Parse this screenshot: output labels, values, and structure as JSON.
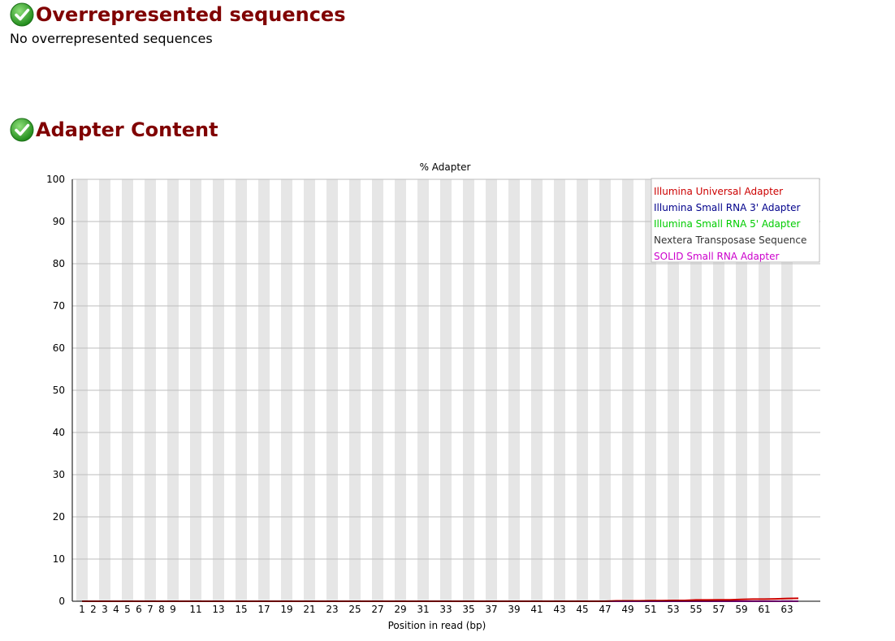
{
  "sections": [
    {
      "title": "Overrepresented sequences",
      "status_icon": "pass-check-icon",
      "body": "No overrepresented sequences"
    },
    {
      "title": "Adapter Content",
      "status_icon": "pass-check-icon"
    }
  ],
  "colors": {
    "heading": "#800000",
    "stripe": "#e6e6e6",
    "grid": "#bdbdbd"
  },
  "chart_data": {
    "type": "line",
    "title": "% Adapter",
    "xlabel": "Position in read (bp)",
    "ylabel": "",
    "ylim": [
      0,
      100
    ],
    "yticks": [
      0,
      10,
      20,
      30,
      40,
      50,
      60,
      70,
      80,
      90,
      100
    ],
    "x": [
      1,
      2,
      3,
      4,
      5,
      6,
      7,
      8,
      9,
      10,
      11,
      12,
      13,
      14,
      15,
      16,
      17,
      18,
      19,
      20,
      21,
      22,
      23,
      24,
      25,
      26,
      27,
      28,
      29,
      30,
      31,
      32,
      33,
      34,
      35,
      36,
      37,
      38,
      39,
      40,
      41,
      42,
      43,
      44,
      45,
      46,
      47,
      48,
      49,
      50,
      51,
      52,
      53,
      54,
      55,
      56,
      57,
      58,
      59,
      60,
      61,
      62,
      63,
      64
    ],
    "xtick_labels": [
      "1",
      "2",
      "3",
      "4",
      "5",
      "6",
      "7",
      "8",
      "9",
      "11",
      "13",
      "15",
      "17",
      "19",
      "21",
      "23",
      "25",
      "27",
      "29",
      "31",
      "33",
      "35",
      "37",
      "39",
      "41",
      "43",
      "45",
      "47",
      "49",
      "51",
      "53",
      "55",
      "57",
      "59",
      "61",
      "63"
    ],
    "xtick_positions": [
      1,
      2,
      3,
      4,
      5,
      6,
      7,
      8,
      9,
      11,
      13,
      15,
      17,
      19,
      21,
      23,
      25,
      27,
      29,
      31,
      33,
      35,
      37,
      39,
      41,
      43,
      45,
      47,
      49,
      51,
      53,
      55,
      57,
      59,
      61,
      63
    ],
    "legend_position": "top-right",
    "grid": true,
    "series": [
      {
        "name": "Illumina Universal Adapter",
        "color": "#cc0000",
        "values": [
          0,
          0,
          0,
          0,
          0,
          0,
          0,
          0,
          0,
          0,
          0,
          0,
          0,
          0,
          0,
          0,
          0,
          0,
          0,
          0,
          0,
          0,
          0,
          0,
          0,
          0,
          0,
          0,
          0,
          0,
          0,
          0,
          0,
          0,
          0,
          0,
          0,
          0,
          0,
          0,
          0,
          0,
          0,
          0,
          0,
          0,
          0,
          0.1,
          0.1,
          0.1,
          0.15,
          0.15,
          0.2,
          0.2,
          0.3,
          0.3,
          0.35,
          0.35,
          0.45,
          0.5,
          0.5,
          0.55,
          0.65,
          0.7
        ]
      },
      {
        "name": "Illumina Small RNA 3' Adapter",
        "color": "#00008b",
        "values": [
          0,
          0,
          0,
          0,
          0,
          0,
          0,
          0,
          0,
          0,
          0,
          0,
          0,
          0,
          0,
          0,
          0,
          0,
          0,
          0,
          0,
          0,
          0,
          0,
          0,
          0,
          0,
          0,
          0,
          0,
          0,
          0,
          0,
          0,
          0,
          0,
          0,
          0,
          0,
          0,
          0,
          0,
          0,
          0,
          0,
          0,
          0,
          0,
          0,
          0,
          0,
          0,
          0,
          0,
          0,
          0,
          0,
          0,
          0,
          0,
          0,
          0,
          0,
          0
        ]
      },
      {
        "name": "Illumina Small RNA 5' Adapter",
        "color": "#00cc00",
        "values": [
          0,
          0,
          0,
          0,
          0,
          0,
          0,
          0,
          0,
          0,
          0,
          0,
          0,
          0,
          0,
          0,
          0,
          0,
          0,
          0,
          0,
          0,
          0,
          0,
          0,
          0,
          0,
          0,
          0,
          0,
          0,
          0,
          0,
          0,
          0,
          0,
          0,
          0,
          0,
          0,
          0,
          0,
          0,
          0,
          0,
          0,
          0,
          0,
          0,
          0,
          0,
          0,
          0,
          0,
          0,
          0,
          0,
          0,
          0,
          0,
          0,
          0,
          0,
          0
        ]
      },
      {
        "name": "Nextera Transposase Sequence",
        "color": "#333333",
        "values": [
          0,
          0,
          0,
          0,
          0,
          0,
          0,
          0,
          0,
          0,
          0,
          0,
          0,
          0,
          0,
          0,
          0,
          0,
          0,
          0,
          0,
          0,
          0,
          0,
          0,
          0,
          0,
          0,
          0,
          0,
          0,
          0,
          0,
          0,
          0,
          0,
          0,
          0,
          0,
          0,
          0,
          0,
          0,
          0,
          0,
          0,
          0,
          0,
          0,
          0,
          0,
          0,
          0,
          0,
          0,
          0,
          0,
          0,
          0,
          0,
          0,
          0,
          0,
          0
        ]
      },
      {
        "name": "SOLID Small RNA Adapter",
        "color": "#cc00cc",
        "values": [
          0,
          0,
          0,
          0,
          0,
          0,
          0,
          0,
          0,
          0,
          0,
          0,
          0,
          0,
          0,
          0,
          0,
          0,
          0,
          0,
          0,
          0,
          0,
          0,
          0,
          0,
          0,
          0,
          0,
          0,
          0,
          0,
          0,
          0,
          0,
          0,
          0,
          0,
          0,
          0,
          0,
          0,
          0,
          0,
          0,
          0,
          0,
          0,
          0,
          0,
          0,
          0,
          0,
          0,
          0,
          0,
          0,
          0,
          0,
          0,
          0,
          0,
          0,
          0
        ]
      }
    ]
  }
}
